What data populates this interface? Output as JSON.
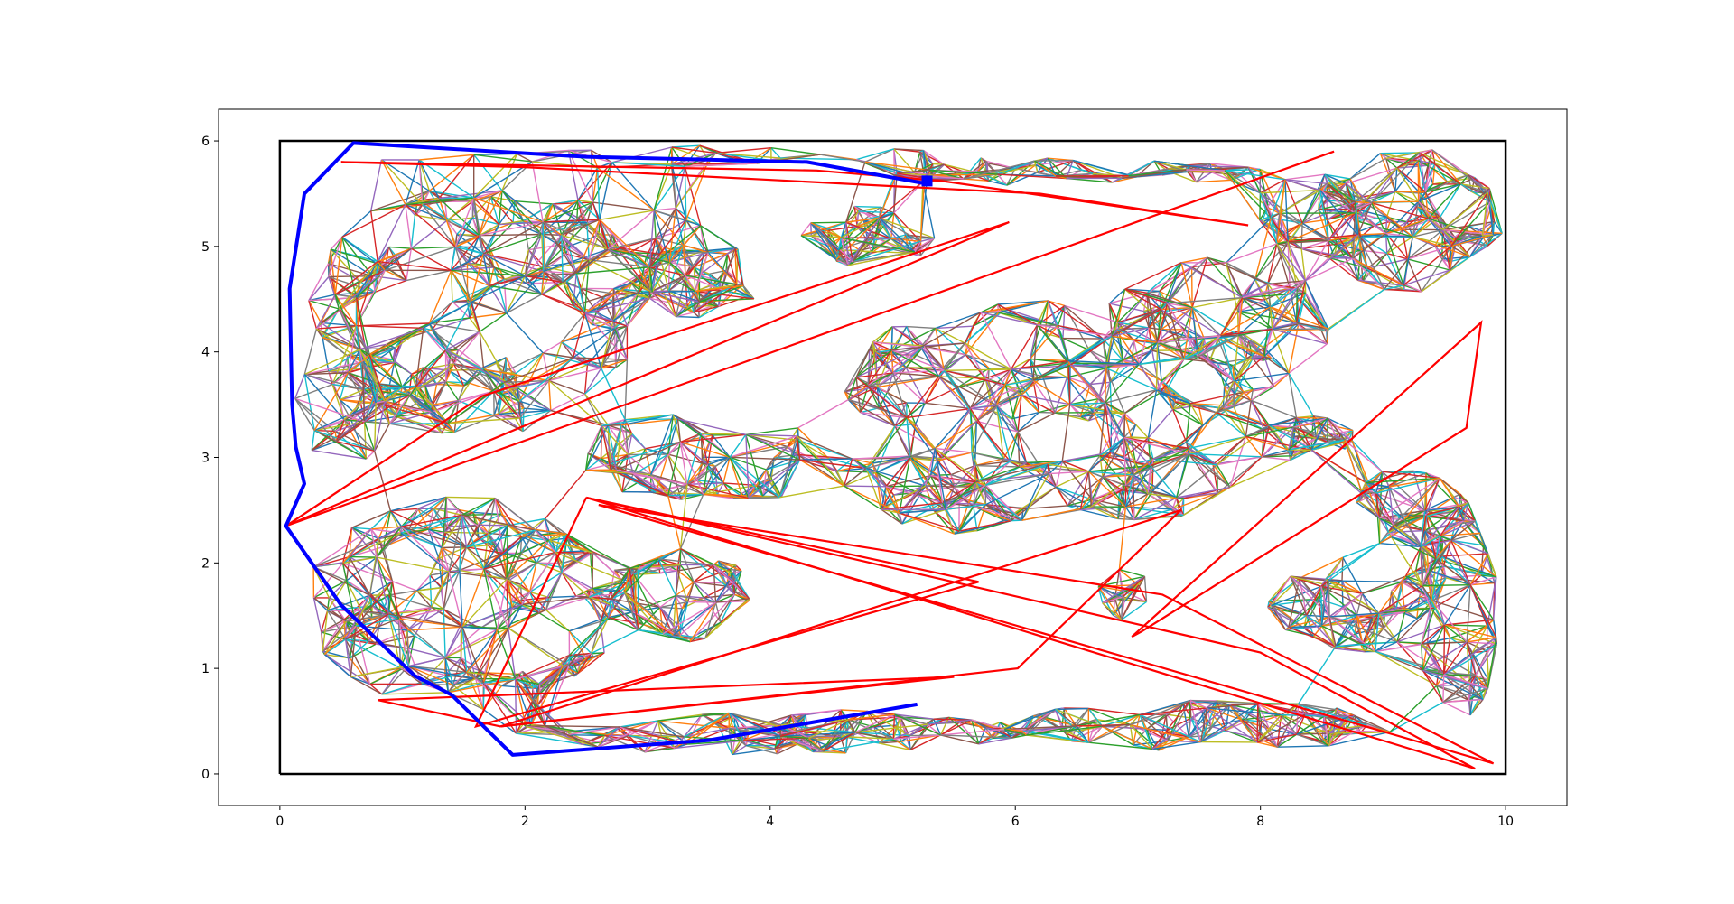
{
  "chart_data": {
    "type": "line",
    "title": "",
    "xlabel": "",
    "ylabel": "",
    "xlim": [
      -0.5,
      10.5
    ],
    "ylim": [
      -0.3,
      6.3
    ],
    "x_ticks": [
      0,
      2,
      4,
      6,
      8,
      10
    ],
    "y_ticks": [
      0,
      1,
      2,
      3,
      4,
      5,
      6
    ],
    "x_tick_labels": [
      "0",
      "2",
      "4",
      "6",
      "8",
      "10"
    ],
    "y_tick_labels": [
      "0",
      "1",
      "2",
      "3",
      "4",
      "5",
      "6"
    ],
    "grid": false,
    "boundary": {
      "x": [
        0,
        10,
        10,
        0,
        0
      ],
      "y": [
        0,
        0,
        6,
        6,
        0
      ],
      "color": "#000000"
    },
    "roadmap_palette": [
      "#1f77b4",
      "#ff7f0e",
      "#2ca02c",
      "#d62728",
      "#9467bd",
      "#8c564b",
      "#e377c2",
      "#7f7f7f",
      "#bcbd22",
      "#17becf"
    ],
    "roadmap_regions": [
      {
        "cx": 1.6,
        "cy": 4.4,
        "rx": 1.4,
        "ry": 1.2,
        "n": 170
      },
      {
        "cx": 0.6,
        "cy": 3.5,
        "rx": 0.5,
        "ry": 0.6,
        "n": 25
      },
      {
        "cx": 3.4,
        "cy": 4.7,
        "rx": 0.55,
        "ry": 0.4,
        "n": 45
      },
      {
        "cx": 2.8,
        "cy": 5.0,
        "rx": 0.8,
        "ry": 0.5,
        "n": 30
      },
      {
        "cx": 4.8,
        "cy": 5.1,
        "rx": 0.55,
        "ry": 0.3,
        "n": 40
      },
      {
        "cx": 3.5,
        "cy": 5.85,
        "rx": 2.8,
        "ry": 0.12,
        "n": 30
      },
      {
        "cx": 6.5,
        "cy": 5.7,
        "rx": 1.6,
        "ry": 0.15,
        "n": 45
      },
      {
        "cx": 9.2,
        "cy": 5.25,
        "rx": 0.8,
        "ry": 0.7,
        "n": 85
      },
      {
        "cx": 8.4,
        "cy": 5.3,
        "rx": 0.5,
        "ry": 0.4,
        "n": 25
      },
      {
        "cx": 6.3,
        "cy": 3.8,
        "rx": 1.9,
        "ry": 0.7,
        "n": 140
      },
      {
        "cx": 7.7,
        "cy": 4.3,
        "rx": 1.0,
        "ry": 0.6,
        "n": 45
      },
      {
        "cx": 3.5,
        "cy": 3.0,
        "rx": 1.3,
        "ry": 0.45,
        "n": 60
      },
      {
        "cx": 5.5,
        "cy": 2.6,
        "rx": 1.0,
        "ry": 0.5,
        "n": 50
      },
      {
        "cx": 7.0,
        "cy": 2.8,
        "rx": 0.8,
        "ry": 0.4,
        "n": 40
      },
      {
        "cx": 8.3,
        "cy": 3.2,
        "rx": 0.5,
        "ry": 0.25,
        "n": 25
      },
      {
        "cx": 6.9,
        "cy": 1.7,
        "rx": 0.25,
        "ry": 0.25,
        "n": 12
      },
      {
        "cx": 1.5,
        "cy": 1.6,
        "rx": 1.3,
        "ry": 1.1,
        "n": 150
      },
      {
        "cx": 3.3,
        "cy": 1.7,
        "rx": 0.6,
        "ry": 0.45,
        "n": 45
      },
      {
        "cx": 4.0,
        "cy": 0.4,
        "rx": 2.1,
        "ry": 0.22,
        "n": 80
      },
      {
        "cx": 7.5,
        "cy": 0.45,
        "rx": 1.6,
        "ry": 0.25,
        "n": 65
      },
      {
        "cx": 8.7,
        "cy": 1.6,
        "rx": 0.65,
        "ry": 0.5,
        "n": 50
      },
      {
        "cx": 9.6,
        "cy": 1.6,
        "rx": 0.35,
        "ry": 1.2,
        "n": 50
      },
      {
        "cx": 9.2,
        "cy": 2.5,
        "rx": 0.6,
        "ry": 0.4,
        "n": 30
      }
    ],
    "obstacles": [
      {
        "x": [
          0.5,
          4.38,
          5.4,
          7.9,
          6.2,
          2.0,
          0.5
        ],
        "y": [
          5.8,
          5.72,
          5.62,
          5.2,
          5.5,
          5.75,
          5.8
        ]
      },
      {
        "x": [
          0.05,
          1.65,
          5.95,
          0.05
        ],
        "y": [
          2.35,
          3.58,
          5.23,
          2.35
        ]
      },
      {
        "x": [
          0.05,
          8.6,
          0.05
        ],
        "y": [
          2.35,
          5.9,
          2.35
        ]
      },
      {
        "x": [
          2.5,
          8.0,
          9.75,
          2.5
        ],
        "y": [
          2.62,
          1.15,
          0.05,
          2.62
        ]
      },
      {
        "x": [
          2.5,
          5.7,
          1.6,
          2.5
        ],
        "y": [
          2.62,
          1.82,
          0.45,
          2.62
        ]
      },
      {
        "x": [
          1.8,
          6.02,
          7.35,
          1.8
        ],
        "y": [
          0.45,
          1.0,
          2.5,
          0.45
        ]
      },
      {
        "x": [
          1.8,
          5.5,
          0.8,
          1.8
        ],
        "y": [
          0.45,
          0.92,
          0.7,
          0.45
        ]
      },
      {
        "x": [
          6.95,
          9.8,
          9.68,
          7.03,
          6.95
        ],
        "y": [
          1.3,
          4.28,
          3.28,
          1.35,
          1.3
        ]
      },
      {
        "x": [
          2.6,
          7.2,
          9.9,
          2.6
        ],
        "y": [
          2.55,
          1.7,
          0.1,
          2.55
        ]
      }
    ],
    "series": [
      {
        "color": "#0000ff",
        "x": [
          5.25,
          4.3,
          2.5,
          0.6,
          0.2,
          0.08,
          0.1,
          0.13,
          0.2,
          0.05,
          0.5,
          1.1,
          1.4,
          1.9,
          3.5,
          5.2
        ],
        "y": [
          5.6,
          5.8,
          5.85,
          5.98,
          5.5,
          4.6,
          3.5,
          3.1,
          2.75,
          2.35,
          1.6,
          0.93,
          0.75,
          0.18,
          0.32,
          0.66
        ]
      }
    ],
    "markers": [
      {
        "x": 5.28,
        "y": 5.62,
        "shape": "square",
        "color": "#0000ff"
      }
    ]
  }
}
